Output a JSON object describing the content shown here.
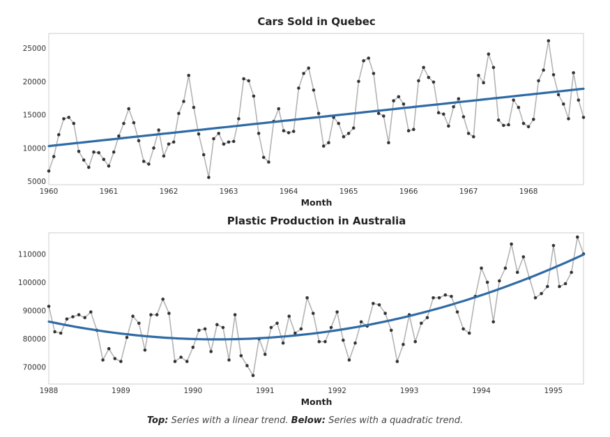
{
  "chart_data": [
    {
      "type": "line",
      "title": "Cars Sold in Quebec",
      "xlabel": "Month",
      "ylabel": "",
      "x_start": "1960-01",
      "x_tick_labels": [
        "1960",
        "1961",
        "1962",
        "1963",
        "1964",
        "1965",
        "1966",
        "1967",
        "1968"
      ],
      "x_range": [
        1960.0,
        1968.917
      ],
      "y_ticks": [
        5000,
        10000,
        15000,
        20000,
        25000
      ],
      "ylim": [
        4500,
        27200
      ],
      "grid": false,
      "colors": {
        "series": "#b3b3b3",
        "points": "#333333",
        "trend": "#2e6aa5"
      },
      "series": [
        {
          "values": [
            6550,
            8730,
            12000,
            14400,
            14600,
            13700,
            9500,
            8200,
            7100,
            9400,
            9300,
            8300,
            7300,
            9400,
            11800,
            13700,
            15900,
            13800,
            11100,
            8000,
            7600,
            10000,
            12700,
            8800,
            10600,
            10900,
            15200,
            17000,
            20900,
            16100,
            12100,
            9000,
            5600,
            11400,
            12200,
            10600,
            10900,
            11000,
            14400,
            20400,
            20100,
            17800,
            12200,
            8600,
            7900,
            14000,
            15900,
            12600,
            12300,
            12500,
            19000,
            21200,
            22000,
            18700,
            15200,
            10300,
            10800,
            14600,
            13700,
            11700,
            12200,
            13000,
            20000,
            23100,
            23500,
            21200,
            15200,
            14800,
            10800,
            17100,
            17700,
            16600,
            12600,
            12800,
            20100,
            22100,
            20600,
            19900,
            15300,
            15100,
            13300,
            16200,
            17400,
            14700,
            12200,
            11700,
            20900,
            19800,
            24100,
            22100,
            14200,
            13400,
            13500,
            17200,
            16100,
            13700,
            13200,
            14300,
            20100,
            21700,
            26100,
            21000,
            18000,
            16600,
            14400,
            21300,
            17200,
            14600
          ]
        },
        {
          "name": "trend",
          "kind": "linear",
          "values_start_end": [
            10300,
            18900
          ]
        }
      ]
    },
    {
      "type": "line",
      "title": "Plastic Production in Australia",
      "xlabel": "Month",
      "ylabel": "",
      "x_start": "1988-01",
      "x_tick_labels": [
        "1988",
        "1989",
        "1990",
        "1991",
        "1992",
        "1993",
        "1994",
        "1995"
      ],
      "x_range": [
        1988.0,
        1995.417
      ],
      "y_ticks": [
        70000,
        80000,
        90000,
        100000,
        110000
      ],
      "ylim": [
        64000,
        117500
      ],
      "grid": false,
      "colors": {
        "series": "#b3b3b3",
        "points": "#333333",
        "trend": "#2e6aa5"
      },
      "series": [
        {
          "values": [
            91500,
            82500,
            82000,
            87000,
            87800,
            88500,
            87500,
            89500,
            83000,
            72500,
            76500,
            73000,
            72000,
            80500,
            88000,
            85500,
            76000,
            88500,
            88500,
            94000,
            89000,
            72000,
            73500,
            72000,
            77000,
            83000,
            83500,
            75500,
            85000,
            84000,
            72500,
            88500,
            74000,
            70500,
            67000,
            80000,
            74500,
            84000,
            85500,
            78500,
            88000,
            82000,
            83500,
            94500,
            89000,
            79000,
            79000,
            84000,
            89500,
            79500,
            72500,
            78500,
            86000,
            84500,
            92500,
            92000,
            89000,
            83000,
            72000,
            78000,
            88500,
            79000,
            85500,
            87500,
            94500,
            94500,
            95500,
            95000,
            89500,
            83500,
            82000,
            95000,
            105000,
            100000,
            86000,
            100500,
            105000,
            113500,
            103500,
            109000,
            101500,
            94500,
            96000,
            98500,
            113000,
            98500,
            99500,
            103500,
            116000,
            110000
          ]
        },
        {
          "name": "trend",
          "kind": "quadratic",
          "vertex_value": 79800,
          "vertex_x": 1990.33,
          "values_start_end": [
            86500,
            109800
          ]
        }
      ]
    }
  ],
  "caption": {
    "top_label": "Top:",
    "top_text": " Series with a linear trend. ",
    "below_label": "Below:",
    "below_text": " Series with a quadratic trend."
  }
}
